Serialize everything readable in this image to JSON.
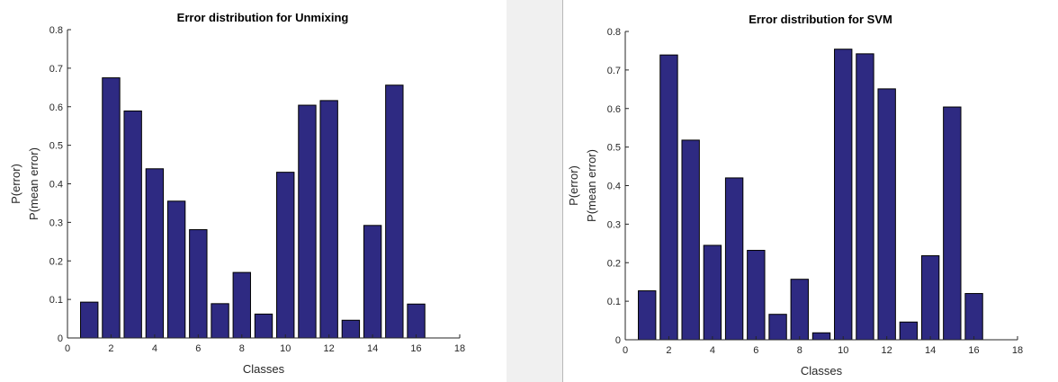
{
  "colors": {
    "bar_fill": "#2e2a82",
    "bar_edge": "#000000",
    "axis": "#262626"
  },
  "chart_data": [
    {
      "type": "bar",
      "title": "Error distribution for Unmixing",
      "xlabel": "Classes",
      "ylabel": [
        "P(error)",
        "P(mean error)"
      ],
      "xlim": [
        0,
        18
      ],
      "ylim": [
        0,
        0.8
      ],
      "xticks": [
        "0",
        "2",
        "4",
        "6",
        "8",
        "10",
        "12",
        "14",
        "16",
        "18"
      ],
      "yticks": [
        "0",
        "0.1",
        "0.2",
        "0.3",
        "0.4",
        "0.5",
        "0.6",
        "0.7",
        "0.8"
      ],
      "categories": [
        1,
        2,
        3,
        4,
        5,
        6,
        7,
        8,
        9,
        10,
        11,
        12,
        13,
        14,
        15,
        16
      ],
      "values": [
        0.093,
        0.675,
        0.589,
        0.439,
        0.355,
        0.281,
        0.089,
        0.17,
        0.062,
        0.43,
        0.604,
        0.616,
        0.046,
        0.292,
        0.656,
        0.088
      ],
      "grid": false,
      "legend": false
    },
    {
      "type": "bar",
      "title": "Error distribution for SVM",
      "xlabel": "Classes",
      "ylabel": [
        "P(error)",
        "P(mean error)"
      ],
      "xlim": [
        0,
        18
      ],
      "ylim": [
        0,
        0.8
      ],
      "xticks": [
        "0",
        "2",
        "4",
        "6",
        "8",
        "10",
        "12",
        "14",
        "16",
        "18"
      ],
      "yticks": [
        "0",
        "0.1",
        "0.2",
        "0.3",
        "0.4",
        "0.5",
        "0.6",
        "0.7",
        "0.8"
      ],
      "categories": [
        1,
        2,
        3,
        4,
        5,
        6,
        7,
        8,
        9,
        10,
        11,
        12,
        13,
        14,
        15,
        16
      ],
      "values": [
        0.127,
        0.739,
        0.518,
        0.245,
        0.42,
        0.232,
        0.066,
        0.157,
        0.018,
        0.754,
        0.742,
        0.651,
        0.046,
        0.218,
        0.604,
        0.12
      ],
      "grid": false,
      "legend": false
    }
  ]
}
